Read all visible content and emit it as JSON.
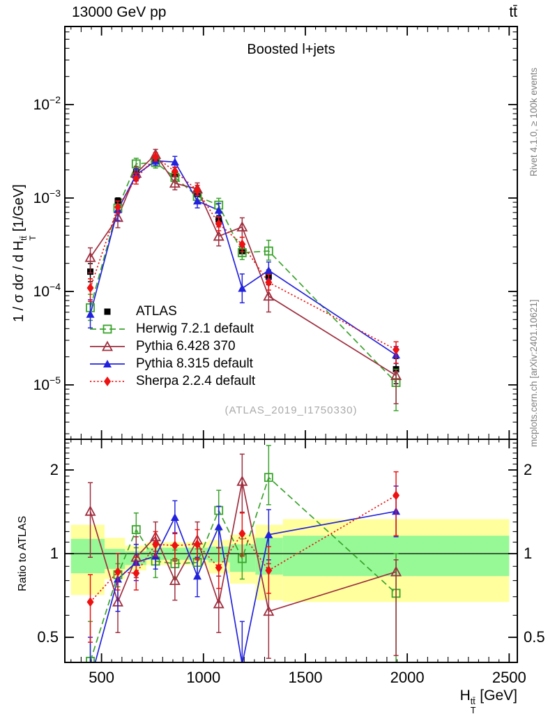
{
  "header": {
    "beam": "13000 GeV pp",
    "process": "tt̄"
  },
  "main_panel": {
    "title": "Boosted l+jets"
  },
  "watermark": "(ATLAS_2019_I1750330)",
  "side_captions": {
    "rivet": "Rivet 4.1.0, ≥ 100k events",
    "mcplots": "mcplots.cern.ch [arXiv:2401.10621]"
  },
  "ylabel_main": {
    "pre": "1 / σ dσ / d H",
    "sup": "tt̄",
    "sub": "T",
    "post": " [1/GeV]"
  },
  "ylabel_ratio": "Ratio to ATLAS",
  "xlabel": {
    "pre": "H",
    "sup": "tt̄",
    "sub": "T",
    "post": " [GeV]"
  },
  "colors": {
    "frame": "#000000",
    "band_yellow": "#ffff9e",
    "band_green": "#96f996",
    "watermark": "#a9a9a9",
    "caption": "#808080"
  },
  "chart_data": {
    "type": "line",
    "title": "Boosted l+jets",
    "xlabel": "H_T^ttbar [GeV]",
    "ylabel_main": "1/sigma dsigma/dH_T^ttbar [1/GeV]",
    "ylabel_ratio": "Ratio to ATLAS",
    "x_axis": {
      "range": [
        320,
        2540
      ],
      "major_ticks": [
        500,
        1000,
        1500,
        2000,
        2500
      ],
      "major_tick_labels": [
        "500",
        "1000",
        "1500",
        "2000",
        "2500"
      ],
      "minor_start": 350,
      "minor_step": 50
    },
    "y_axis_main": {
      "scale": "log",
      "range": [
        2.6e-06,
        0.0685
      ],
      "tick_exponents": [
        -2,
        -3,
        -4,
        -5
      ]
    },
    "y_axis_ratio": {
      "scale": "log",
      "range": [
        0.406,
        2.58
      ],
      "ticks": [
        2,
        1,
        0.5
      ],
      "tick_labels": [
        "2",
        "1",
        "0.5"
      ]
    },
    "bin_edges": [
      350,
      515,
      615,
      720,
      810,
      915,
      1025,
      1130,
      1255,
      1390,
      2500
    ],
    "bin_centers": [
      445,
      580,
      670,
      765,
      860,
      970,
      1075,
      1190,
      1320,
      1945
    ],
    "bands": {
      "yellow": [
        [
          0.71,
          1.27
        ],
        [
          0.81,
          1.14
        ],
        [
          0.87,
          1.07
        ],
        [
          0.91,
          1.1
        ],
        [
          0.91,
          1.1
        ],
        [
          0.91,
          1.1
        ],
        [
          0.85,
          1.12
        ],
        [
          0.78,
          1.17
        ],
        [
          0.68,
          1.27
        ],
        [
          0.67,
          1.33
        ]
      ],
      "green": [
        [
          0.85,
          1.13
        ],
        [
          0.88,
          1.04
        ],
        [
          0.91,
          1.02
        ],
        [
          0.95,
          1.05
        ],
        [
          0.95,
          1.05
        ],
        [
          0.95,
          1.05
        ],
        [
          0.93,
          1.06
        ],
        [
          0.86,
          1.08
        ],
        [
          0.84,
          1.14
        ],
        [
          0.83,
          1.16
        ]
      ]
    },
    "series": [
      {
        "key": "atlas",
        "label": "ATLAS",
        "color": "#000000",
        "marker": "square-filled",
        "line": "none",
        "y": [
          0.000163,
          0.00093,
          0.0019,
          0.00255,
          0.0018,
          0.00112,
          0.00059,
          0.00027,
          0.000144,
          1.47e-05
        ],
        "y_err_frac": [
          0.22,
          0.08,
          0.06,
          0.06,
          0.06,
          0.07,
          0.1,
          0.12,
          0.18,
          0.3
        ]
      },
      {
        "key": "herwig",
        "label": "Herwig 7.2.1 default",
        "color": "#3aa32c",
        "marker": "square-open",
        "line": "dashed",
        "y": [
          6.7e-05,
          0.00078,
          0.00232,
          0.0024,
          0.00166,
          0.00104,
          0.00084,
          0.00026,
          0.000271,
          1.06e-05
        ],
        "ratio": [
          0.41,
          0.84,
          1.22,
          0.94,
          0.92,
          0.93,
          1.43,
          0.96,
          1.88,
          0.72
        ],
        "ratio_err": [
          [
            0.3,
            0.57
          ],
          [
            0.76,
            0.92
          ],
          [
            1.05,
            1.4
          ],
          [
            0.82,
            1.08
          ],
          [
            0.82,
            1.03
          ],
          [
            0.83,
            1.04
          ],
          [
            1.21,
            1.69
          ],
          [
            0.81,
            1.13
          ],
          [
            1.5,
            2.45
          ],
          [
            0.36,
            1.0
          ]
        ]
      },
      {
        "key": "pythia6",
        "label": "Pythia 6.428 370",
        "color": "#9e2f3f",
        "marker": "triangle-open",
        "line": "solid",
        "y": [
          0.000231,
          0.00062,
          0.00184,
          0.00293,
          0.00144,
          0.00125,
          0.00039,
          0.00049,
          8.9e-05,
          1.26e-05
        ],
        "ratio": [
          1.42,
          0.67,
          0.97,
          1.15,
          0.8,
          1.12,
          0.66,
          1.82,
          0.62,
          0.86
        ],
        "ratio_err": [
          [
            0.97,
            1.8
          ],
          [
            0.52,
            0.87
          ],
          [
            0.82,
            1.15
          ],
          [
            1.02,
            1.3
          ],
          [
            0.68,
            0.94
          ],
          [
            0.96,
            1.3
          ],
          [
            0.52,
            0.83
          ],
          [
            1.41,
            2.28
          ],
          [
            0.42,
            0.92
          ],
          [
            0.43,
            0.95
          ]
        ]
      },
      {
        "key": "pythia8",
        "label": "Pythia 8.315 default",
        "color": "#2222dd",
        "marker": "triangle-filled",
        "line": "solid",
        "y": [
          5.7e-05,
          0.00075,
          0.00177,
          0.0025,
          0.00243,
          0.00093,
          0.00074,
          0.000108,
          0.000168,
          2.09e-05
        ],
        "ratio": [
          0.35,
          0.81,
          0.93,
          0.98,
          1.35,
          0.83,
          1.25,
          0.4,
          1.17,
          1.42
        ],
        "ratio_err": [
          [
            0.25,
            0.5
          ],
          [
            0.62,
            1.0
          ],
          [
            0.8,
            1.08
          ],
          [
            0.88,
            1.1
          ],
          [
            1.18,
            1.55
          ],
          [
            0.7,
            0.97
          ],
          [
            1.05,
            1.48
          ],
          [
            0.28,
            0.57
          ],
          [
            0.95,
            1.44
          ],
          [
            1.15,
            1.75
          ]
        ]
      },
      {
        "key": "sherpa",
        "label": "Sherpa 2.2.4 default",
        "color": "#ee1111",
        "marker": "diamond-filled",
        "line": "dotted",
        "y": [
          0.000109,
          0.0008,
          0.00162,
          0.00275,
          0.00193,
          0.00121,
          0.00053,
          0.00032,
          0.000125,
          2.38e-05
        ],
        "ratio": [
          0.67,
          0.86,
          0.85,
          1.08,
          1.07,
          1.08,
          0.89,
          1.18,
          0.87,
          1.62
        ],
        "ratio_err": [
          [
            0.48,
            0.84
          ],
          [
            0.74,
            1.0
          ],
          [
            0.74,
            0.97
          ],
          [
            0.98,
            1.2
          ],
          [
            0.96,
            1.19
          ],
          [
            0.95,
            1.22
          ],
          [
            0.75,
            1.05
          ],
          [
            0.98,
            1.4
          ],
          [
            0.72,
            1.06
          ],
          [
            1.16,
            1.97
          ]
        ]
      }
    ]
  }
}
